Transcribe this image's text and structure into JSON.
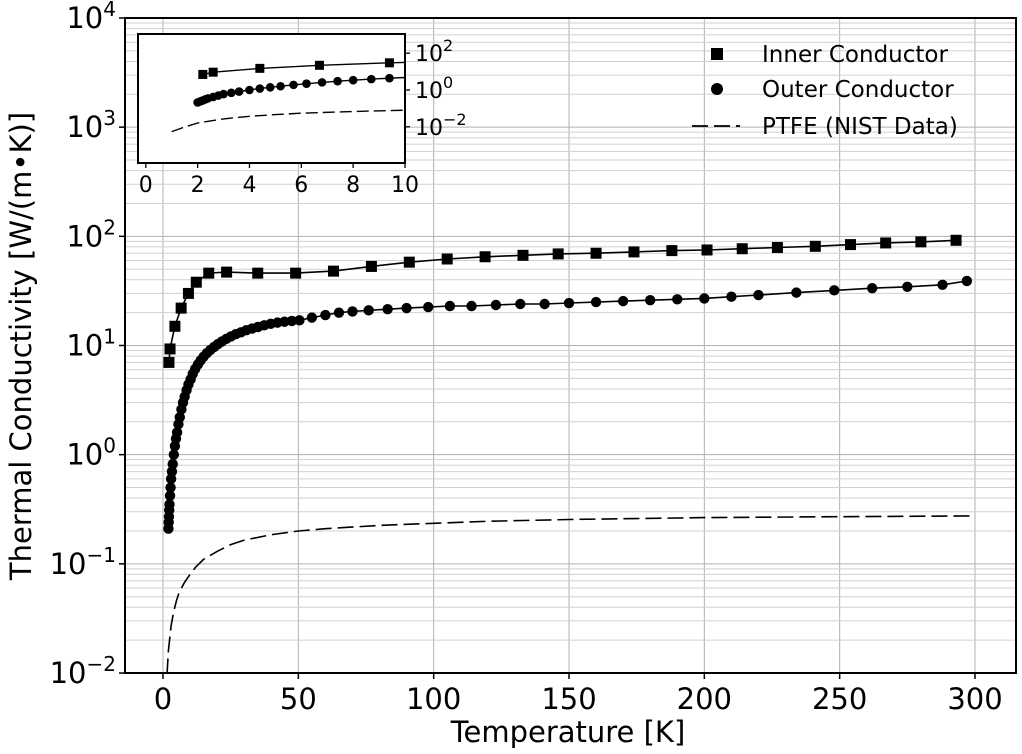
{
  "chart_data": {
    "type": "line",
    "title": "",
    "xlabel": "Temperature [K]",
    "ylabel": "Thermal Conductivity [W/(m•K)]",
    "xlim": [
      -15,
      315
    ],
    "ylim": [
      0.01,
      10000
    ],
    "yscale": "log",
    "grid": "on (major and minor)",
    "legend_position": "top-right",
    "x_ticks": [
      0,
      50,
      100,
      150,
      200,
      250,
      300
    ],
    "y_ticks": [
      0.01,
      0.1,
      1,
      10,
      100,
      1000,
      10000
    ],
    "series": [
      {
        "name": "Inner Conductor",
        "marker": "square",
        "x": [
          2.2,
          2.6,
          4.4,
          6.7,
          9.4,
          12.3,
          16.9,
          23.5,
          35.0,
          49.0,
          63.0,
          77.0,
          91.0,
          105.0,
          119.0,
          133.0,
          146.0,
          160.0,
          174.0,
          188.0,
          201.0,
          214.0,
          227.0,
          241.0,
          254.0,
          267.0,
          280.0,
          293.0
        ],
        "y": [
          7.0,
          9.3,
          15.0,
          22.0,
          30.0,
          38.0,
          46.0,
          47.0,
          46.0,
          46.0,
          48.0,
          53.0,
          58.0,
          62.0,
          65.0,
          67.0,
          69.0,
          70.0,
          72.0,
          74.0,
          75.0,
          77.0,
          79.0,
          81.0,
          84.0,
          87.0,
          89.0,
          92.0
        ]
      },
      {
        "name": "Outer Conductor",
        "marker": "circle",
        "x": [
          2.0,
          2.1,
          2.2,
          2.3,
          2.4,
          2.6,
          2.8,
          3.0,
          3.3,
          3.6,
          4.0,
          4.4,
          4.8,
          5.2,
          5.7,
          6.2,
          6.8,
          7.4,
          8.0,
          8.7,
          9.4,
          10.2,
          11.0,
          11.9,
          12.9,
          13.9,
          15.0,
          16.2,
          17.5,
          18.9,
          20.3,
          21.8,
          23.4,
          25.1,
          26.9,
          28.8,
          30.8,
          32.9,
          35.1,
          37.4,
          39.8,
          42.3,
          44.9,
          47.6,
          50.4,
          55.0,
          60.0,
          65.0,
          70.0,
          76.0,
          83.0,
          90.0,
          98.0,
          106.0,
          114.0,
          123.0,
          132.0,
          141.0,
          150.0,
          160.0,
          170.0,
          180.0,
          190.0,
          200.0,
          210.0,
          220.0,
          234.0,
          248.0,
          262.0,
          275.0,
          288.0,
          297.0
        ],
        "y": [
          0.21,
          0.24,
          0.27,
          0.31,
          0.35,
          0.42,
          0.5,
          0.6,
          0.7,
          0.82,
          1.0,
          1.2,
          1.4,
          1.6,
          1.9,
          2.2,
          2.6,
          3.0,
          3.4,
          3.9,
          4.4,
          4.9,
          5.5,
          6.1,
          6.7,
          7.3,
          7.9,
          8.5,
          9.1,
          9.7,
          10.3,
          10.9,
          11.5,
          12.1,
          12.7,
          13.2,
          13.8,
          14.3,
          14.8,
          15.3,
          15.8,
          16.2,
          16.5,
          16.8,
          17.0,
          18.0,
          19.0,
          20.0,
          20.5,
          21.0,
          21.5,
          22.0,
          22.5,
          23.0,
          23.0,
          23.5,
          24.0,
          24.0,
          24.5,
          25.0,
          25.5,
          26.0,
          26.5,
          27.0,
          28.0,
          29.0,
          30.5,
          32.0,
          33.5,
          34.5,
          36.0,
          39.0
        ]
      },
      {
        "name": "PTFE (NIST Data)",
        "marker": "none",
        "linestyle": "dashed",
        "x": [
          1.0,
          1.5,
          2.0,
          3.0,
          4.0,
          5.0,
          6.0,
          8.0,
          10.0,
          12.0,
          15.0,
          20.0,
          25.0,
          30.0,
          40.0,
          50.0,
          60.0,
          80.0,
          100.0,
          120.0,
          150.0,
          200.0,
          250.0,
          300.0
        ],
        "y": [
          0.0055,
          0.0098,
          0.016,
          0.027,
          0.037,
          0.046,
          0.055,
          0.068,
          0.08,
          0.093,
          0.11,
          0.13,
          0.15,
          0.165,
          0.185,
          0.2,
          0.21,
          0.225,
          0.235,
          0.245,
          0.255,
          0.265,
          0.27,
          0.275
        ]
      }
    ],
    "inset": {
      "xlim": [
        -0.3,
        10
      ],
      "ylim": [
        0.0002,
        2000
      ],
      "yscale": "log",
      "x_ticks": [
        0,
        2,
        4,
        6,
        8,
        10
      ],
      "y_ticks": [
        0.01,
        1,
        100
      ],
      "grid": "off",
      "y_axis_side": "right"
    }
  },
  "ticks": {
    "x": [
      "0",
      "50",
      "100",
      "150",
      "200",
      "250",
      "300"
    ],
    "y_base": "10",
    "y_exp": [
      "−2",
      "−1",
      "0",
      "1",
      "2",
      "3",
      "4"
    ],
    "inset_x": [
      "0",
      "2",
      "4",
      "6",
      "8",
      "10"
    ],
    "inset_y_exp": [
      "−2",
      "0",
      "2"
    ]
  },
  "colors": {
    "ink": "#000000",
    "grid": "#b0b0b0",
    "background": "#ffffff"
  }
}
